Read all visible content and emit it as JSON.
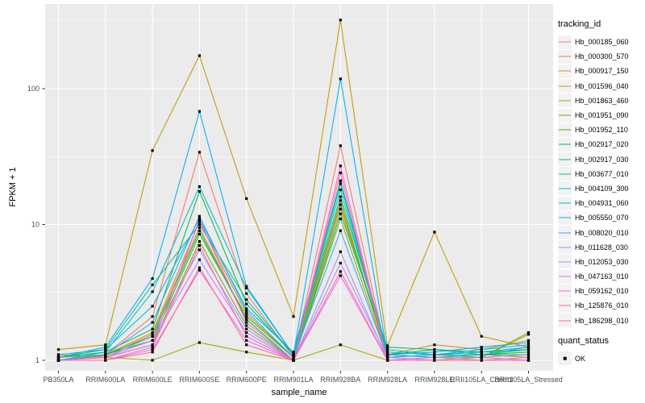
{
  "figure": {
    "background": "#FFFFFF",
    "panel_background": "#EBEBEB",
    "gridline_color": "#FFFFFF",
    "tick_color": "#333333",
    "tick_label_color": "#4D4D4D",
    "text_color": "#000000"
  },
  "axes": {
    "x_title": "sample_name",
    "y_title": "FPKM + 1",
    "y_major_ticks": [
      1,
      10,
      100
    ],
    "y_tick_labels": [
      "1",
      "10",
      "100"
    ],
    "y_minor_ticks": [
      3.1623,
      31.623,
      316.23
    ]
  },
  "legend": {
    "tracking_title": "tracking_id",
    "quant_title": "quant_status",
    "quant_items": [
      {
        "label": "OK",
        "marker": "black-square"
      }
    ],
    "key_fill": "#F2F2F2"
  },
  "chart_data": {
    "type": "line",
    "title": "",
    "xlabel": "sample_name",
    "ylabel": "FPKM + 1",
    "y_scale": "log10",
    "ylim": [
      1,
      423
    ],
    "grid": true,
    "legend_position": "right",
    "point_marker": "small black square (quant_status OK)",
    "categories": [
      "PB350LA",
      "RRIM600LA",
      "RRIM600LE",
      "RRIM600SE",
      "RRIM600PE",
      "RRIM901LA",
      "RRIM928BA",
      "RRIM928LA",
      "RRIM928LE",
      "RRII105LA_Control",
      "RRII105LA_Stressed"
    ],
    "series": [
      {
        "name": "Hb_000185_060",
        "color": "#F8766D",
        "values": [
          1.05,
          1.1,
          2.1,
          34,
          3.1,
          1.05,
          38,
          1.05,
          1.1,
          1.05,
          1.0
        ]
      },
      {
        "name": "Hb_000300_570",
        "color": "#EA8331",
        "values": [
          1.0,
          1.08,
          1.55,
          9.5,
          2.0,
          1.0,
          13,
          1.1,
          1.3,
          1.2,
          1.4
        ]
      },
      {
        "name": "Hb_000917_150",
        "color": "#D89000",
        "values": [
          1.0,
          1.1,
          1.6,
          10.5,
          2.2,
          1.05,
          15,
          1.05,
          1.1,
          1.1,
          1.05
        ]
      },
      {
        "name": "Hb_001596_040",
        "color": "#C09B00",
        "values": [
          1.2,
          1.3,
          35,
          175,
          15.5,
          2.1,
          320,
          1.28,
          8.8,
          1.5,
          1.25
        ]
      },
      {
        "name": "Hb_001863_460",
        "color": "#A3A500",
        "values": [
          1.1,
          1.05,
          1.0,
          1.35,
          1.15,
          1.0,
          1.3,
          1.0,
          1.0,
          1.05,
          1.6
        ]
      },
      {
        "name": "Hb_001951_090",
        "color": "#7CAE00",
        "values": [
          1.0,
          1.05,
          1.3,
          7.5,
          1.8,
          1.0,
          11,
          1.05,
          1.1,
          1.05,
          1.55
        ]
      },
      {
        "name": "Hb_001952_110",
        "color": "#39B600",
        "values": [
          1.0,
          1.1,
          1.4,
          8.5,
          2.1,
          1.05,
          14,
          1.1,
          1.05,
          1.1,
          1.15
        ]
      },
      {
        "name": "Hb_002917_020",
        "color": "#00BB4E",
        "values": [
          1.05,
          1.15,
          1.7,
          17.5,
          2.6,
          1.1,
          20,
          1.1,
          1.2,
          1.15,
          1.2
        ]
      },
      {
        "name": "Hb_002917_030",
        "color": "#00BF7D",
        "values": [
          1.0,
          1.1,
          1.5,
          9.0,
          2.0,
          1.0,
          12,
          1.25,
          1.2,
          1.1,
          1.1
        ]
      },
      {
        "name": "Hb_003677_010",
        "color": "#00C1A3",
        "values": [
          1.05,
          1.2,
          3.6,
          10,
          2.8,
          1.1,
          16,
          1.2,
          1.1,
          1.15,
          1.25
        ]
      },
      {
        "name": "Hb_004109_300",
        "color": "#00BFC4",
        "values": [
          1.0,
          1.15,
          3.2,
          19,
          3.4,
          1.1,
          18,
          1.1,
          1.05,
          1.1,
          1.2
        ]
      },
      {
        "name": "Hb_004931_060",
        "color": "#00BAE0",
        "values": [
          1.1,
          1.2,
          2.5,
          11,
          2.4,
          1.15,
          21,
          1.15,
          1.1,
          1.2,
          1.3
        ]
      },
      {
        "name": "Hb_005550_070",
        "color": "#00B0F6",
        "values": [
          1.05,
          1.25,
          4.0,
          68,
          3.5,
          1.1,
          118,
          1.1,
          1.15,
          1.25,
          1.35
        ]
      },
      {
        "name": "Hb_008020_010",
        "color": "#35A2FF",
        "values": [
          1.0,
          1.1,
          1.9,
          11.5,
          2.3,
          1.05,
          9.0,
          1.05,
          1.1,
          1.1,
          1.25
        ]
      },
      {
        "name": "Hb_011628_030",
        "color": "#9590FF",
        "values": [
          1.0,
          1.05,
          1.5,
          6.5,
          1.7,
          1.0,
          6.3,
          1.0,
          1.05,
          1.05,
          1.1
        ]
      },
      {
        "name": "Hb_012053_030",
        "color": "#C77CFF",
        "values": [
          1.0,
          1.05,
          1.4,
          5.5,
          1.6,
          1.0,
          5.2,
          1.05,
          1.0,
          1.0,
          1.05
        ]
      },
      {
        "name": "Hb_047163_010",
        "color": "#E76BF3",
        "values": [
          1.0,
          1.0,
          1.2,
          4.6,
          1.4,
          1.0,
          4.2,
          1.0,
          1.0,
          1.0,
          1.0
        ]
      },
      {
        "name": "Hb_059162_010",
        "color": "#FA62DB",
        "values": [
          1.0,
          1.05,
          1.3,
          10.8,
          1.9,
          1.0,
          27,
          1.0,
          1.05,
          1.0,
          1.0
        ]
      },
      {
        "name": "Hb_125876_010",
        "color": "#FF62BC",
        "values": [
          1.0,
          1.0,
          1.25,
          7.0,
          1.5,
          1.0,
          24,
          1.0,
          1.0,
          1.0,
          1.0
        ]
      },
      {
        "name": "Hb_186298_010",
        "color": "#FF6A98",
        "values": [
          1.0,
          1.0,
          1.15,
          4.8,
          1.3,
          1.0,
          4.5,
          1.0,
          1.0,
          1.0,
          1.0
        ]
      }
    ]
  }
}
